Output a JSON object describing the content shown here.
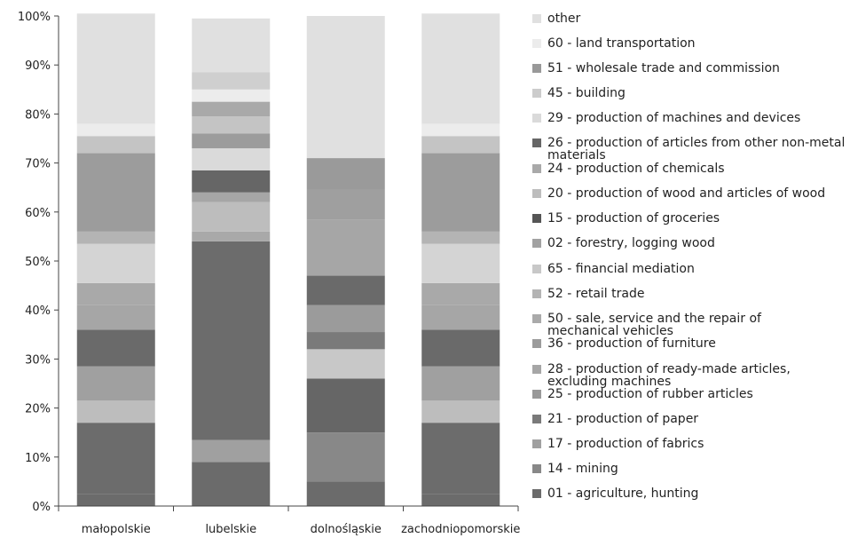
{
  "chart_data": {
    "type": "bar",
    "stacked": true,
    "normalized_percent": true,
    "categories": [
      "małopolskie",
      "lubelskie",
      "dolnośląskie",
      "zachodniopomorskie"
    ],
    "yticks": [
      "0%",
      "10%",
      "20%",
      "30%",
      "40%",
      "50%",
      "60%",
      "70%",
      "80%",
      "90%",
      "100%"
    ],
    "ylim": [
      0,
      100
    ],
    "grid": false,
    "legend_position": "right",
    "series": [
      {
        "name": "01 - agriculture, hunting",
        "color": "#6b6b6b",
        "values": [
          2.5,
          9,
          5,
          2.5
        ]
      },
      {
        "name": "14 - mining",
        "color": "#888888",
        "values": [
          0,
          0,
          10,
          0
        ]
      },
      {
        "name": "17 - production of fabrics",
        "color": "#a0a0a0",
        "values": [
          0,
          4.5,
          0,
          0
        ]
      },
      {
        "name": "21 - production of paper",
        "color": "#6c6c6c",
        "values": [
          14.5,
          40.5,
          0,
          14.5
        ]
      },
      {
        "name": "25 - production of rubber articles",
        "color": "#999999",
        "values": [
          0,
          0,
          0,
          0
        ]
      },
      {
        "name": "28 - production of ready-made articles,\nexcluding machines",
        "color": "#a6a6a6",
        "values": [
          0,
          0,
          0,
          0
        ]
      },
      {
        "name": "36 - production of furniture",
        "color": "#9b9b9b",
        "values": [
          0,
          0,
          0,
          0
        ]
      },
      {
        "name": "50 - sale, service and the repair of\nmechanical vehicles",
        "color": "#aaaaaa",
        "values": [
          0,
          0,
          0,
          0
        ]
      },
      {
        "name": "52 - retail trade",
        "color": "#b4b4b4",
        "values": [
          0,
          0,
          0,
          0
        ]
      },
      {
        "name": "65 - financial mediation",
        "color": "#c8c8c8",
        "values": [
          0,
          0,
          0,
          0
        ]
      },
      {
        "name": "02 - forestry, logging wood",
        "color": "#a2a2a2",
        "values": [
          0,
          0,
          0,
          0
        ]
      },
      {
        "name": "15 - production of groceries",
        "color": "#666666",
        "values": [
          0,
          0,
          11,
          0
        ]
      },
      {
        "name": "20 - production of wood and articles of wood",
        "color": "#bdbdbd",
        "values": [
          4.5,
          2,
          6,
          4.5
        ]
      },
      {
        "name": "24 - production of chemicals",
        "color": "#a9a9a9",
        "values": [
          7,
          0,
          4,
          7
        ]
      },
      {
        "name": "26 - production of articles from other non-metal\nmaterials",
        "color": "#666666",
        "values": [
          7.5,
          0,
          0,
          7.5
        ]
      },
      {
        "name": "29 - production of machines and devices",
        "color": "#dadada",
        "values": [
          0,
          0,
          0,
          0
        ]
      },
      {
        "name": "45 - building",
        "color": "#cccccc",
        "values": [
          0,
          0,
          0,
          0
        ]
      },
      {
        "name": "51 - wholesale trade and commission",
        "color": "#999999",
        "values": [
          0,
          0,
          0,
          0
        ]
      },
      {
        "name": "60 - land transportation",
        "color": "#ececec",
        "values": [
          0,
          0,
          0,
          0
        ]
      },
      {
        "name": "other",
        "color": "#e0e0e0",
        "values": [
          0,
          0,
          0,
          0
        ]
      }
    ],
    "stacks": [
      [
        {
          "v": 2.5,
          "c": "#6b6b6b"
        },
        {
          "v": 14.5,
          "c": "#6c6c6c"
        },
        {
          "v": 4.5,
          "c": "#bdbdbd"
        },
        {
          "v": 7,
          "c": "#a0a0a0"
        },
        {
          "v": 7.5,
          "c": "#6a6a6a"
        },
        {
          "v": 5,
          "c": "#a6a6a6"
        },
        {
          "v": 4.5,
          "c": "#a9a9a9"
        },
        {
          "v": 8,
          "c": "#d4d4d4"
        },
        {
          "v": 2.5,
          "c": "#b4b4b4"
        },
        {
          "v": 16,
          "c": "#9c9c9c"
        },
        {
          "v": 3.5,
          "c": "#c4c4c4"
        },
        {
          "v": 2.5,
          "c": "#ececec"
        },
        {
          "v": 22.5,
          "c": "#e0e0e0"
        }
      ],
      [
        {
          "v": 9,
          "c": "#6b6b6b"
        },
        {
          "v": 4.5,
          "c": "#a0a0a0"
        },
        {
          "v": 40.5,
          "c": "#6c6c6c"
        },
        {
          "v": 2,
          "c": "#a9a9a9"
        },
        {
          "v": 6,
          "c": "#bdbdbd"
        },
        {
          "v": 2,
          "c": "#a6a6a6"
        },
        {
          "v": 4.5,
          "c": "#666666"
        },
        {
          "v": 4.5,
          "c": "#dadada"
        },
        {
          "v": 3,
          "c": "#9c9c9c"
        },
        {
          "v": 3.5,
          "c": "#c4c4c4"
        },
        {
          "v": 3,
          "c": "#a9a9a9"
        },
        {
          "v": 2.5,
          "c": "#ececec"
        },
        {
          "v": 3.5,
          "c": "#cfcfcf"
        },
        {
          "v": 11,
          "c": "#e0e0e0"
        }
      ],
      [
        {
          "v": 5,
          "c": "#6b6b6b"
        },
        {
          "v": 10,
          "c": "#888888"
        },
        {
          "v": 11,
          "c": "#666666"
        },
        {
          "v": 6,
          "c": "#c8c8c8"
        },
        {
          "v": 3.5,
          "c": "#7a7a7a"
        },
        {
          "v": 5.5,
          "c": "#9b9b9b"
        },
        {
          "v": 6,
          "c": "#6a6a6a"
        },
        {
          "v": 11.5,
          "c": "#a6a6a6"
        },
        {
          "v": 6,
          "c": "#9f9f9f"
        },
        {
          "v": 6.5,
          "c": "#9a9a9a"
        },
        {
          "v": 29,
          "c": "#e0e0e0"
        }
      ],
      [
        {
          "v": 2.5,
          "c": "#6b6b6b"
        },
        {
          "v": 14.5,
          "c": "#6c6c6c"
        },
        {
          "v": 4.5,
          "c": "#bdbdbd"
        },
        {
          "v": 7,
          "c": "#a0a0a0"
        },
        {
          "v": 7.5,
          "c": "#6a6a6a"
        },
        {
          "v": 5,
          "c": "#a6a6a6"
        },
        {
          "v": 4.5,
          "c": "#a9a9a9"
        },
        {
          "v": 8,
          "c": "#d4d4d4"
        },
        {
          "v": 2.5,
          "c": "#b4b4b4"
        },
        {
          "v": 16,
          "c": "#9c9c9c"
        },
        {
          "v": 3.5,
          "c": "#c4c4c4"
        },
        {
          "v": 2.5,
          "c": "#ececec"
        },
        {
          "v": 22.5,
          "c": "#e0e0e0"
        }
      ]
    ],
    "legend": [
      {
        "label": "other",
        "color": "#e0e0e0"
      },
      {
        "label": "60 - land transportation",
        "color": "#ececec"
      },
      {
        "label": "51 - wholesale trade and commission",
        "color": "#999999"
      },
      {
        "label": "45 - building",
        "color": "#cccccc"
      },
      {
        "label": "29 - production of machines and devices",
        "color": "#dadada"
      },
      {
        "label": "26 - production of articles from other non-metal\nmaterials",
        "color": "#666666"
      },
      {
        "label": "24 - production of chemicals",
        "color": "#a9a9a9"
      },
      {
        "label": "20 - production of wood and articles of wood",
        "color": "#bdbdbd"
      },
      {
        "label": "15 - production of groceries",
        "color": "#555555"
      },
      {
        "label": "02 - forestry, logging wood",
        "color": "#a2a2a2"
      },
      {
        "label": "65 - financial mediation",
        "color": "#c8c8c8"
      },
      {
        "label": "52 - retail trade",
        "color": "#b4b4b4"
      },
      {
        "label": "50 - sale, service and the repair of\nmechanical vehicles",
        "color": "#aaaaaa"
      },
      {
        "label": "36 - production of furniture",
        "color": "#9b9b9b"
      },
      {
        "label": "28 - production of ready-made articles,\nexcluding machines",
        "color": "#a6a6a6"
      },
      {
        "label": "25 - production of rubber articles",
        "color": "#999999"
      },
      {
        "label": "21 - production of paper",
        "color": "#7a7a7a"
      },
      {
        "label": "17 - production of fabrics",
        "color": "#a0a0a0"
      },
      {
        "label": "14 - mining",
        "color": "#888888"
      },
      {
        "label": "01 - agriculture, hunting",
        "color": "#6b6b6b"
      }
    ]
  }
}
